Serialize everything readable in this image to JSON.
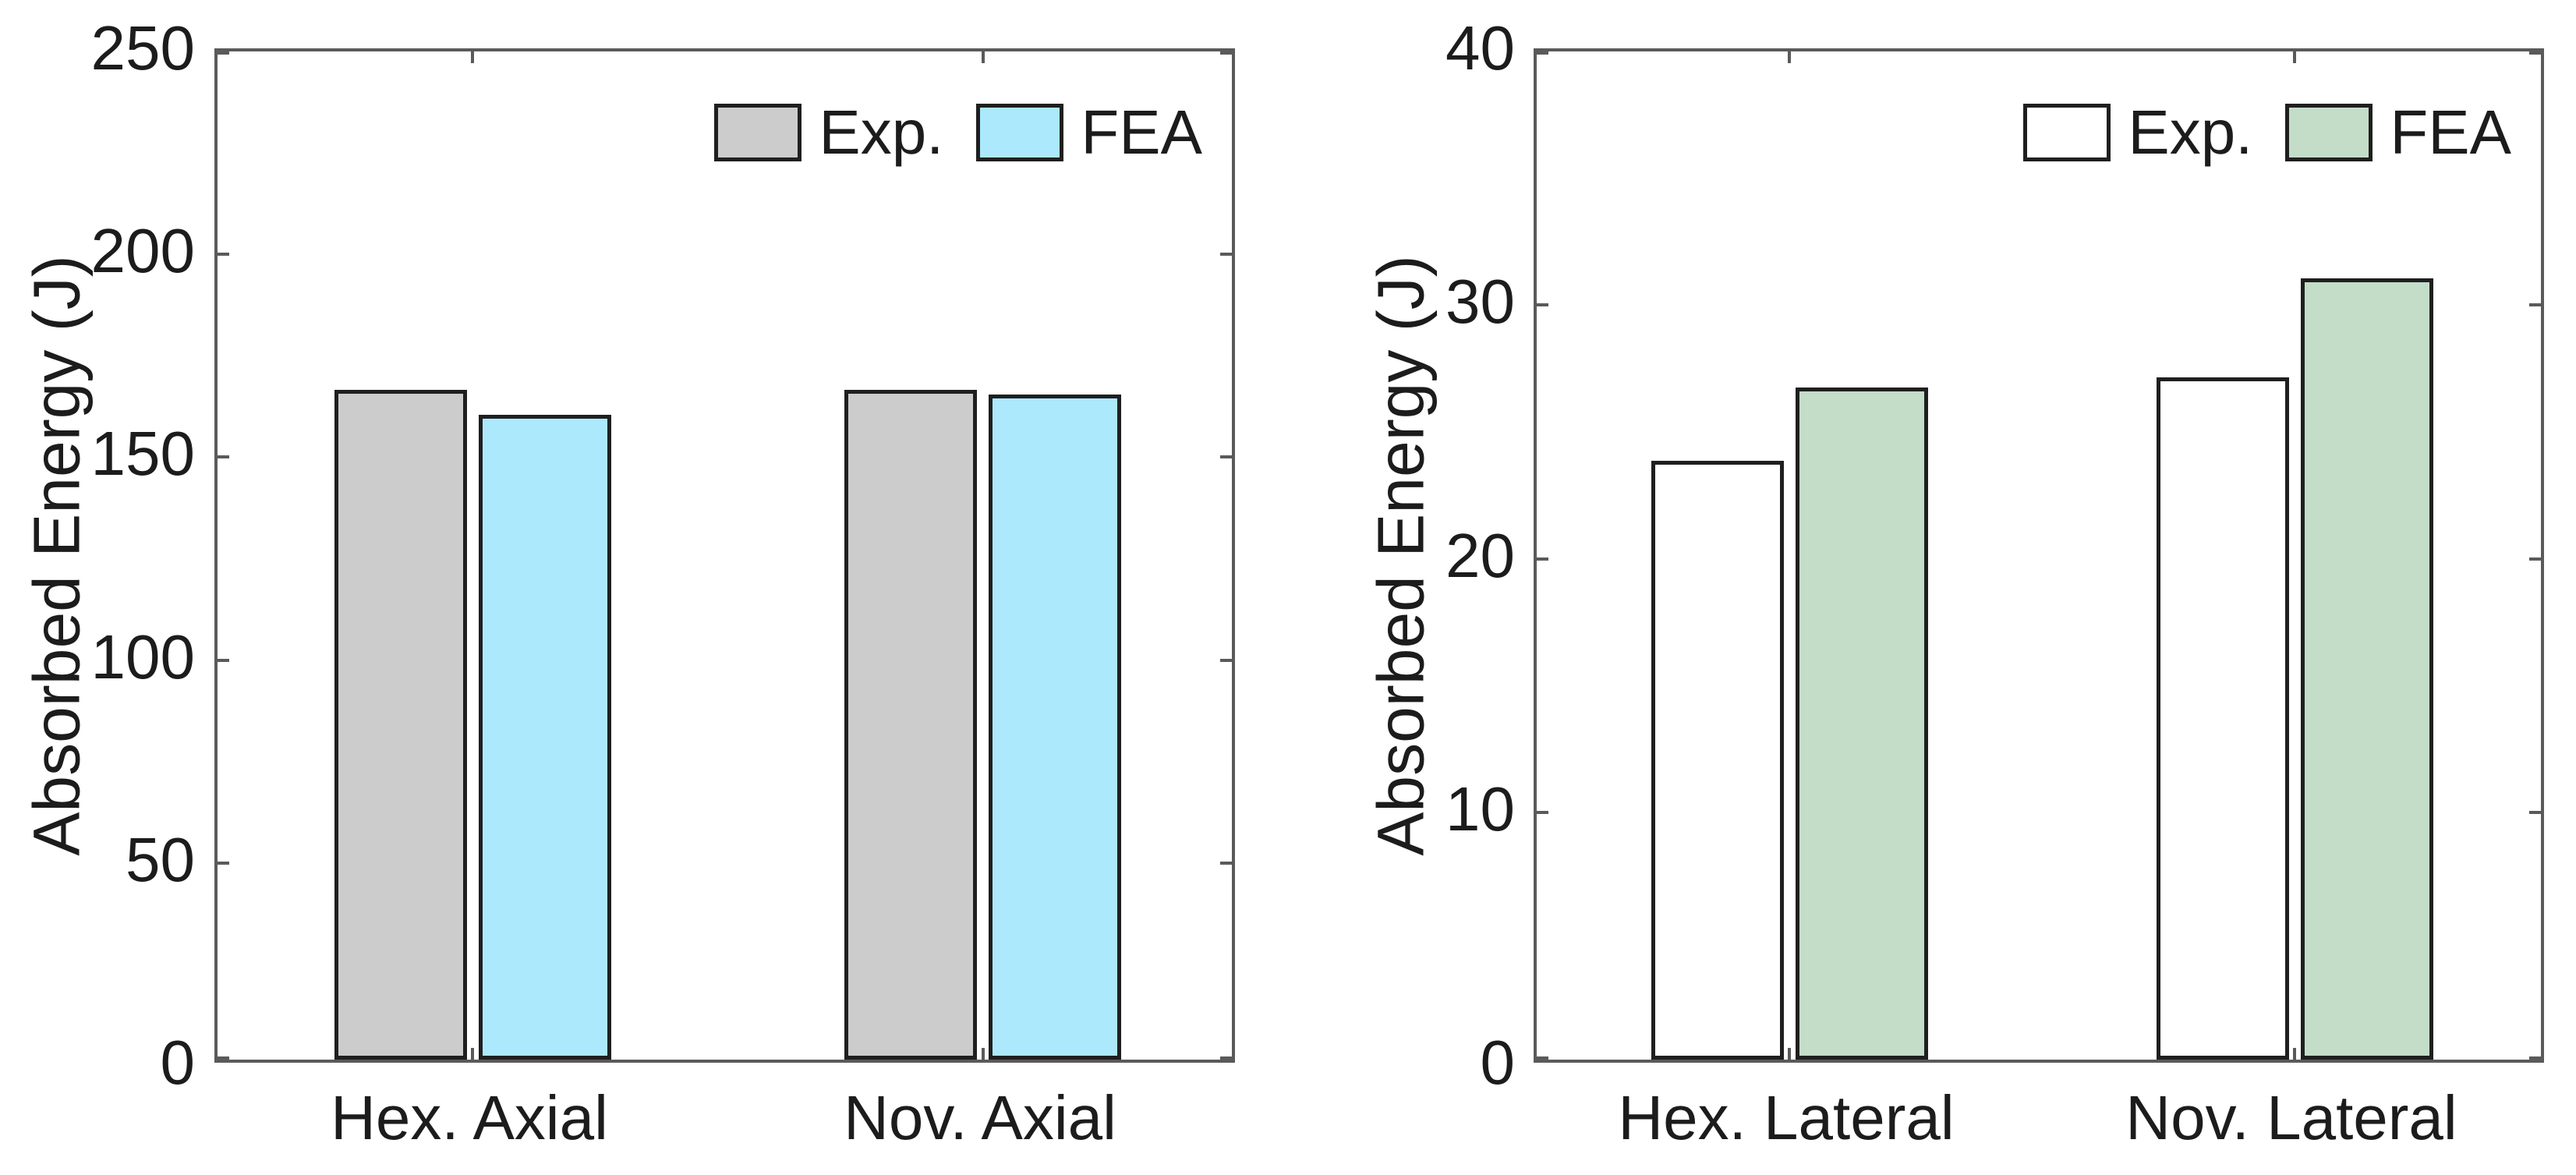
{
  "figure": {
    "background_color": "#ffffff",
    "text_color": "#1c1c1c",
    "axis_line_color": "#5a5a5a",
    "bar_edge_color": "#1f1f1f"
  },
  "chart_data": [
    {
      "type": "bar",
      "title": "",
      "xlabel": "",
      "ylabel": "Absorbed Energy (J)",
      "categories": [
        "Hex. Axial",
        "Nov. Axial"
      ],
      "series": [
        {
          "name": "Exp.",
          "fill": "#cccccc",
          "values": [
            165,
            165
          ]
        },
        {
          "name": "FEA",
          "fill": "#ace9fd",
          "values": [
            159,
            164
          ]
        }
      ],
      "ylim": [
        0,
        250
      ],
      "yticks": [
        0,
        50,
        100,
        150,
        200,
        250
      ],
      "grid": false,
      "legend_position": "top-right-inside"
    },
    {
      "type": "bar",
      "title": "",
      "xlabel": "",
      "ylabel": "Absorbed Energy (J)",
      "categories": [
        "Hex. Lateral",
        "Nov. Lateral"
      ],
      "series": [
        {
          "name": "Exp.",
          "fill": "#ffffff",
          "values": [
            23.6,
            26.9
          ]
        },
        {
          "name": "FEA",
          "fill": "#c3ddc8",
          "values": [
            26.5,
            30.8
          ]
        }
      ],
      "ylim": [
        0,
        40
      ],
      "yticks": [
        0,
        10,
        20,
        30,
        40
      ],
      "grid": false,
      "legend_position": "top-right-inside"
    }
  ]
}
